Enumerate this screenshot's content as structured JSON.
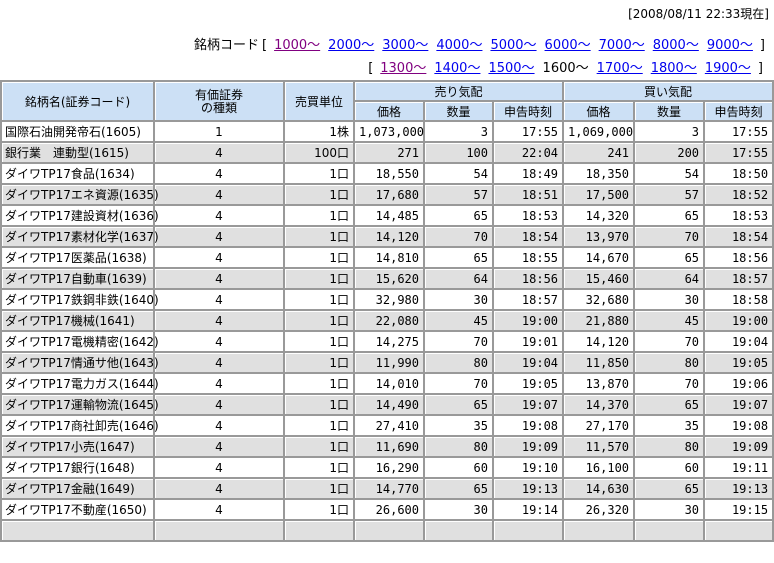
{
  "page": {
    "timestamp": "[2008/08/11 22:33現在]"
  },
  "nav": {
    "label": "銘柄コード",
    "bracket_open": "[",
    "bracket_close": "]",
    "row1": [
      {
        "label": "1000～",
        "visited": true
      },
      {
        "label": "2000～"
      },
      {
        "label": "3000～"
      },
      {
        "label": "4000～"
      },
      {
        "label": "5000～"
      },
      {
        "label": "6000～"
      },
      {
        "label": "7000～"
      },
      {
        "label": "8000～"
      },
      {
        "label": "9000～"
      }
    ],
    "row2": [
      {
        "label": "1300～",
        "visited": true
      },
      {
        "label": "1400～"
      },
      {
        "label": "1500～"
      },
      {
        "label": "1600～",
        "current": true
      },
      {
        "label": "1700～"
      },
      {
        "label": "1800～"
      },
      {
        "label": "1900～"
      }
    ]
  },
  "table": {
    "headers": {
      "name": "銘柄名(証券コード)",
      "type_line1": "有価証券",
      "type_line2": "の種類",
      "unit": "売買単位",
      "ask_group": "売り気配",
      "bid_group": "買い気配",
      "price": "価格",
      "qty": "数量",
      "time": "申告時刻"
    },
    "rows": [
      {
        "name": "国際石油開発帝石(1605)",
        "type": "1",
        "unit": "1株",
        "ask_price": "1,073,000",
        "ask_qty": "3",
        "ask_time": "17:55",
        "bid_price": "1,069,000",
        "bid_qty": "3",
        "bid_time": "17:55"
      },
      {
        "name": "銀行業　連動型(1615)",
        "type": "4",
        "unit": "100口",
        "ask_price": "271",
        "ask_qty": "100",
        "ask_time": "22:04",
        "bid_price": "241",
        "bid_qty": "200",
        "bid_time": "17:55"
      },
      {
        "name": "ダイワTP17食品(1634)",
        "type": "4",
        "unit": "1口",
        "ask_price": "18,550",
        "ask_qty": "54",
        "ask_time": "18:49",
        "bid_price": "18,350",
        "bid_qty": "54",
        "bid_time": "18:50"
      },
      {
        "name": "ダイワTP17エネ資源(1635)",
        "type": "4",
        "unit": "1口",
        "ask_price": "17,680",
        "ask_qty": "57",
        "ask_time": "18:51",
        "bid_price": "17,500",
        "bid_qty": "57",
        "bid_time": "18:52"
      },
      {
        "name": "ダイワTP17建設資材(1636)",
        "type": "4",
        "unit": "1口",
        "ask_price": "14,485",
        "ask_qty": "65",
        "ask_time": "18:53",
        "bid_price": "14,320",
        "bid_qty": "65",
        "bid_time": "18:53"
      },
      {
        "name": "ダイワTP17素材化学(1637)",
        "type": "4",
        "unit": "1口",
        "ask_price": "14,120",
        "ask_qty": "70",
        "ask_time": "18:54",
        "bid_price": "13,970",
        "bid_qty": "70",
        "bid_time": "18:54"
      },
      {
        "name": "ダイワTP17医薬品(1638)",
        "type": "4",
        "unit": "1口",
        "ask_price": "14,810",
        "ask_qty": "65",
        "ask_time": "18:55",
        "bid_price": "14,670",
        "bid_qty": "65",
        "bid_time": "18:56"
      },
      {
        "name": "ダイワTP17自動車(1639)",
        "type": "4",
        "unit": "1口",
        "ask_price": "15,620",
        "ask_qty": "64",
        "ask_time": "18:56",
        "bid_price": "15,460",
        "bid_qty": "64",
        "bid_time": "18:57"
      },
      {
        "name": "ダイワTP17鉄鋼非鉄(1640)",
        "type": "4",
        "unit": "1口",
        "ask_price": "32,980",
        "ask_qty": "30",
        "ask_time": "18:57",
        "bid_price": "32,680",
        "bid_qty": "30",
        "bid_time": "18:58"
      },
      {
        "name": "ダイワTP17機械(1641)",
        "type": "4",
        "unit": "1口",
        "ask_price": "22,080",
        "ask_qty": "45",
        "ask_time": "19:00",
        "bid_price": "21,880",
        "bid_qty": "45",
        "bid_time": "19:00"
      },
      {
        "name": "ダイワTP17電機精密(1642)",
        "type": "4",
        "unit": "1口",
        "ask_price": "14,275",
        "ask_qty": "70",
        "ask_time": "19:01",
        "bid_price": "14,120",
        "bid_qty": "70",
        "bid_time": "19:04"
      },
      {
        "name": "ダイワTP17情通サ他(1643)",
        "type": "4",
        "unit": "1口",
        "ask_price": "11,990",
        "ask_qty": "80",
        "ask_time": "19:04",
        "bid_price": "11,850",
        "bid_qty": "80",
        "bid_time": "19:05"
      },
      {
        "name": "ダイワTP17電力ガス(1644)",
        "type": "4",
        "unit": "1口",
        "ask_price": "14,010",
        "ask_qty": "70",
        "ask_time": "19:05",
        "bid_price": "13,870",
        "bid_qty": "70",
        "bid_time": "19:06"
      },
      {
        "name": "ダイワTP17運輸物流(1645)",
        "type": "4",
        "unit": "1口",
        "ask_price": "14,490",
        "ask_qty": "65",
        "ask_time": "19:07",
        "bid_price": "14,370",
        "bid_qty": "65",
        "bid_time": "19:07"
      },
      {
        "name": "ダイワTP17商社卸売(1646)",
        "type": "4",
        "unit": "1口",
        "ask_price": "27,410",
        "ask_qty": "35",
        "ask_time": "19:08",
        "bid_price": "27,170",
        "bid_qty": "35",
        "bid_time": "19:08"
      },
      {
        "name": "ダイワTP17小売(1647)",
        "type": "4",
        "unit": "1口",
        "ask_price": "11,690",
        "ask_qty": "80",
        "ask_time": "19:09",
        "bid_price": "11,570",
        "bid_qty": "80",
        "bid_time": "19:09"
      },
      {
        "name": "ダイワTP17銀行(1648)",
        "type": "4",
        "unit": "1口",
        "ask_price": "16,290",
        "ask_qty": "60",
        "ask_time": "19:10",
        "bid_price": "16,100",
        "bid_qty": "60",
        "bid_time": "19:11"
      },
      {
        "name": "ダイワTP17金融(1649)",
        "type": "4",
        "unit": "1口",
        "ask_price": "14,770",
        "ask_qty": "65",
        "ask_time": "19:13",
        "bid_price": "14,630",
        "bid_qty": "65",
        "bid_time": "19:13"
      },
      {
        "name": "ダイワTP17不動産(1650)",
        "type": "4",
        "unit": "1口",
        "ask_price": "26,600",
        "ask_qty": "30",
        "ask_time": "19:14",
        "bid_price": "26,320",
        "bid_qty": "30",
        "bid_time": "19:15"
      }
    ]
  },
  "colors": {
    "header_bg": "#cce0f5",
    "row_alt_bg": "#e0e0e0",
    "grid": "#999999",
    "link": "#0000ee",
    "link_visited": "#800080"
  }
}
